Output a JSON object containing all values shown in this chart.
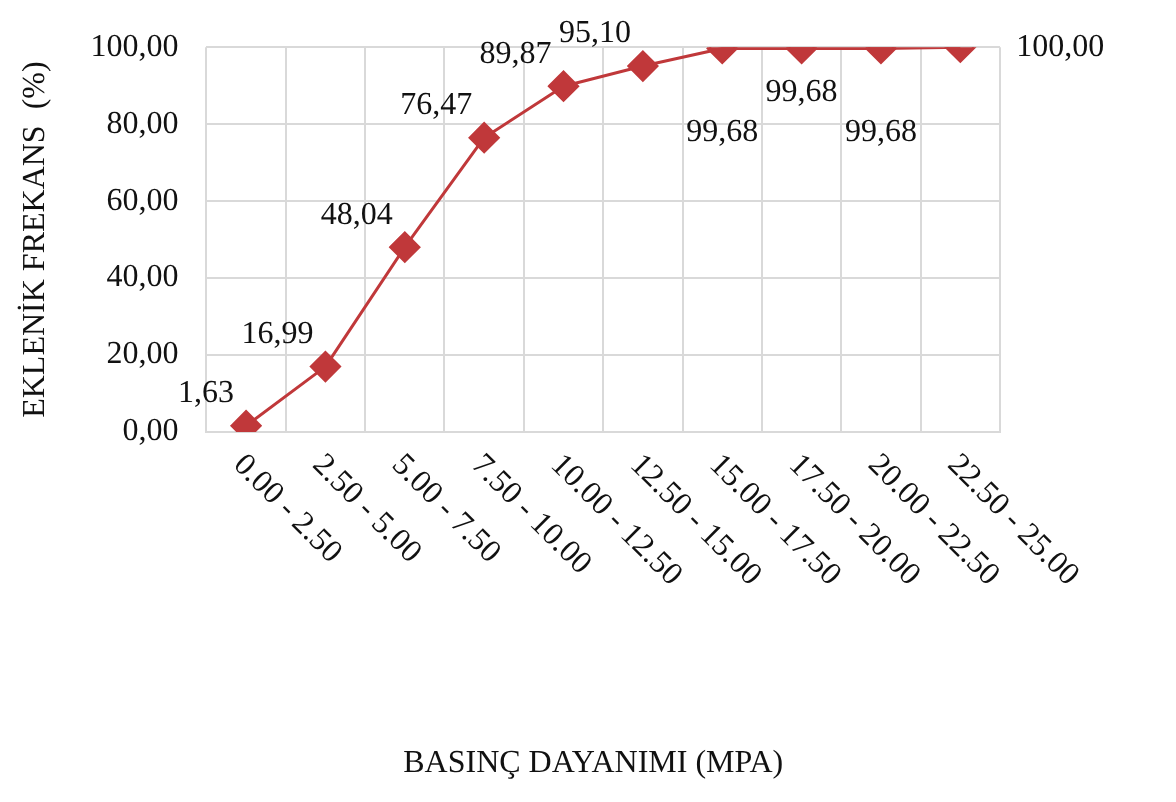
{
  "chart_data": {
    "type": "line",
    "xlabel": "BASINÇ DAYANIMI (MPA)",
    "ylabel": "EKLENİK FREKANS  (%)",
    "categories": [
      "0.00 - 2.50",
      "2.50 - 5.00",
      "5.00 - 7.50",
      "7.50 - 10.00",
      "10.00 - 12.50",
      "12.50 - 15.00",
      "15.00 - 17.50",
      "17.50 - 20.00",
      "20.00 - 22.50",
      "22.50 - 25.00"
    ],
    "series": [
      {
        "color": "#c0383a",
        "values": [
          1.63,
          16.99,
          48.04,
          76.47,
          89.87,
          95.1,
          99.68,
          99.68,
          99.68,
          100.0
        ],
        "value_labels": [
          "1,63",
          "16,99",
          "48,04",
          "76,47",
          "89,87",
          "95,10",
          "99,68",
          "99,68",
          "99,68",
          "100,00"
        ]
      }
    ],
    "ylim": [
      0,
      100
    ],
    "yticks": [
      {
        "value": 0,
        "label": "0,00"
      },
      {
        "value": 20,
        "label": "20,00"
      },
      {
        "value": 40,
        "label": "40,00"
      },
      {
        "value": 60,
        "label": "60,00"
      },
      {
        "value": 80,
        "label": "80,00"
      },
      {
        "value": 100,
        "label": "100,00"
      }
    ],
    "grid": true,
    "legend": false,
    "marker": "diamond",
    "line_style": "solid"
  }
}
